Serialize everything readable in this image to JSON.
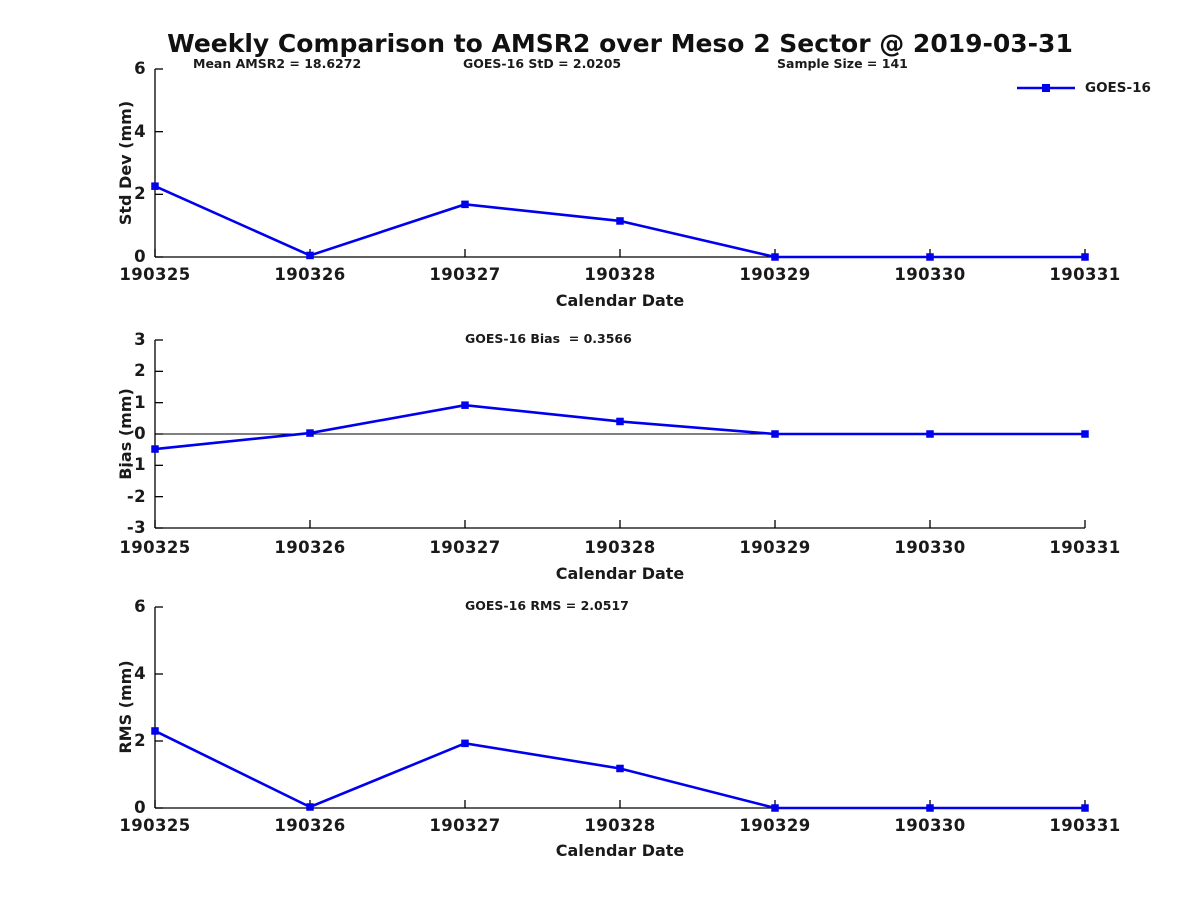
{
  "figure_title": "Weekly Comparison to AMSR2 over Meso 2 Sector @ 2019-03-31",
  "header_stats": {
    "mean_amsr2": "Mean AMSR2 = 18.6272",
    "goes16_std": "GOES-16 StD = 2.0205",
    "sample_size": "Sample Size = 141"
  },
  "legend": {
    "label": "GOES-16"
  },
  "colors": {
    "series": "#0000ee",
    "axis": "#000000",
    "text": "#1a1a1a"
  },
  "chart_data": [
    {
      "type": "line",
      "panel": "std-dev",
      "title": "",
      "ylabel": "Std Dev (mm)",
      "xlabel": "Calendar Date",
      "categories": [
        "190325",
        "190326",
        "190327",
        "190328",
        "190329",
        "190330",
        "190331"
      ],
      "series": [
        {
          "name": "GOES-16",
          "values": [
            2.26,
            0.05,
            1.68,
            1.15,
            0.0,
            0.0,
            0.0
          ]
        }
      ],
      "ylim": [
        0,
        6
      ],
      "yticks": [
        0,
        2,
        4,
        6
      ],
      "zero_line": false,
      "grid": false,
      "legend_position": "upper right",
      "marker": "square",
      "annotation": ""
    },
    {
      "type": "line",
      "panel": "bias",
      "title": "",
      "ylabel": "Bias (mm)",
      "xlabel": "Calendar Date",
      "categories": [
        "190325",
        "190326",
        "190327",
        "190328",
        "190329",
        "190330",
        "190331"
      ],
      "series": [
        {
          "name": "GOES-16",
          "values": [
            -0.48,
            0.03,
            0.92,
            0.4,
            0.0,
            0.0,
            0.0
          ]
        }
      ],
      "ylim": [
        -3,
        3
      ],
      "yticks": [
        -3,
        -2,
        -1,
        0,
        1,
        2,
        3
      ],
      "zero_line": true,
      "grid": false,
      "legend_position": "none",
      "marker": "square",
      "annotation": "GOES-16 Bias  = 0.3566"
    },
    {
      "type": "line",
      "panel": "rms",
      "title": "",
      "ylabel": "RMS (mm)",
      "xlabel": "Calendar Date",
      "categories": [
        "190325",
        "190326",
        "190327",
        "190328",
        "190329",
        "190330",
        "190331"
      ],
      "series": [
        {
          "name": "GOES-16",
          "values": [
            2.3,
            0.03,
            1.93,
            1.18,
            0.0,
            0.0,
            0.0
          ]
        }
      ],
      "ylim": [
        0,
        6
      ],
      "yticks": [
        0,
        2,
        4,
        6
      ],
      "zero_line": false,
      "grid": false,
      "legend_position": "none",
      "marker": "square",
      "annotation": "GOES-16 RMS = 2.0517"
    }
  ]
}
